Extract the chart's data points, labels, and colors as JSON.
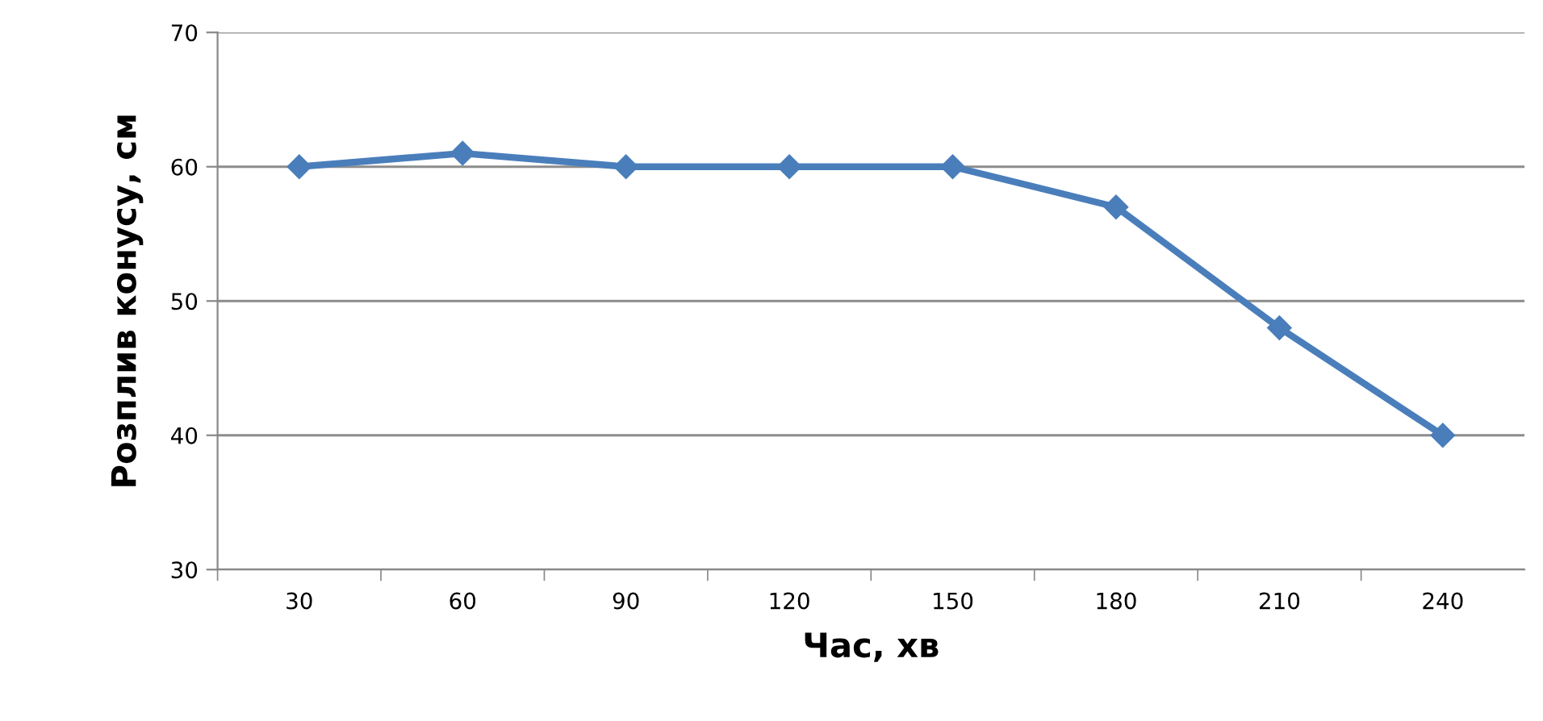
{
  "chart_data": {
    "type": "line",
    "xlabel": "Час, хв",
    "ylabel": "Розплив конусу, см",
    "categories": [
      "30",
      "60",
      "90",
      "120",
      "150",
      "180",
      "210",
      "240"
    ],
    "series": [
      {
        "color": "#4a7ebb",
        "values": [
          60,
          61,
          60,
          60,
          60,
          57,
          48,
          40
        ]
      }
    ],
    "ylim": [
      30,
      70
    ],
    "yticks": [
      30,
      40,
      50,
      60,
      70
    ],
    "grid": "y",
    "marker": "diamond",
    "line_style": "solid",
    "legend": false
  }
}
